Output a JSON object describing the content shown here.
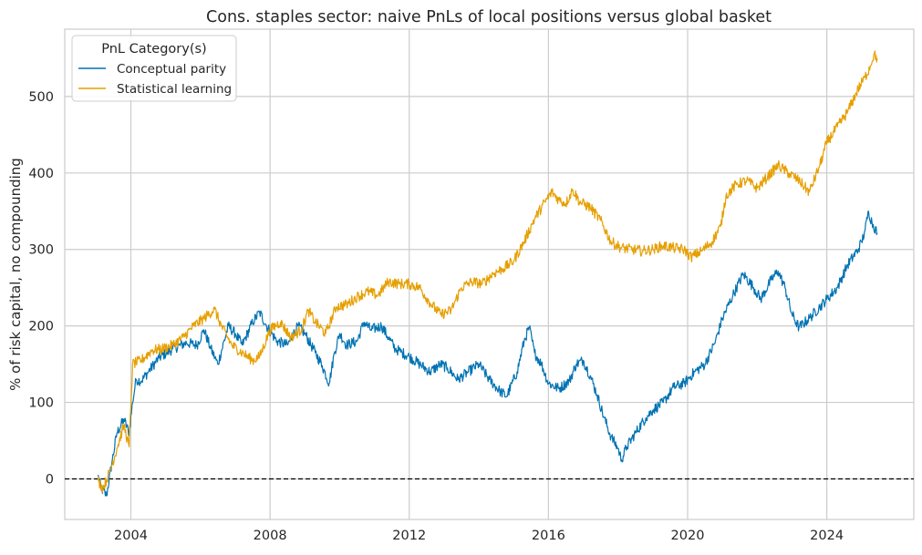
{
  "chart_data": {
    "type": "line",
    "title": "Cons. staples sector: naive PnLs of local positions versus global basket",
    "xlabel": "",
    "ylabel": "% of risk capital, no compounding",
    "xlim": [
      2002.1,
      2026.5
    ],
    "ylim": [
      -53,
      588
    ],
    "xticks": [
      2004,
      2008,
      2012,
      2016,
      2020,
      2024
    ],
    "xtick_labels": [
      "2004",
      "2008",
      "2012",
      "2016",
      "2020",
      "2024"
    ],
    "yticks": [
      0,
      100,
      200,
      300,
      400,
      500
    ],
    "ytick_labels": [
      "0",
      "100",
      "200",
      "300",
      "400",
      "500"
    ],
    "grid": true,
    "hline": {
      "y": 0,
      "style": "dashed",
      "color": "#000000"
    },
    "legend": {
      "title": "PnL Category(s)",
      "placement": "top-left"
    },
    "series": [
      {
        "name": "Conceptual parity",
        "color": "#0072B2",
        "points": [
          [
            2003.05,
            5
          ],
          [
            2003.15,
            -12
          ],
          [
            2003.3,
            -22
          ],
          [
            2003.45,
            20
          ],
          [
            2003.6,
            60
          ],
          [
            2003.8,
            78
          ],
          [
            2003.95,
            60
          ],
          [
            2004.05,
            100
          ],
          [
            2004.15,
            130
          ],
          [
            2004.3,
            128
          ],
          [
            2004.5,
            140
          ],
          [
            2004.8,
            158
          ],
          [
            2005.2,
            170
          ],
          [
            2005.6,
            178
          ],
          [
            2005.9,
            175
          ],
          [
            2006.1,
            195
          ],
          [
            2006.3,
            170
          ],
          [
            2006.5,
            150
          ],
          [
            2006.8,
            200
          ],
          [
            2007.0,
            190
          ],
          [
            2007.2,
            175
          ],
          [
            2007.5,
            205
          ],
          [
            2007.7,
            218
          ],
          [
            2007.9,
            200
          ],
          [
            2008.2,
            180
          ],
          [
            2008.5,
            175
          ],
          [
            2008.8,
            200
          ],
          [
            2009.0,
            190
          ],
          [
            2009.3,
            165
          ],
          [
            2009.5,
            148
          ],
          [
            2009.7,
            125
          ],
          [
            2009.85,
            165
          ],
          [
            2010.0,
            190
          ],
          [
            2010.2,
            175
          ],
          [
            2010.5,
            180
          ],
          [
            2010.7,
            205
          ],
          [
            2010.9,
            195
          ],
          [
            2011.2,
            200
          ],
          [
            2011.4,
            185
          ],
          [
            2011.6,
            170
          ],
          [
            2011.8,
            165
          ],
          [
            2012.0,
            160
          ],
          [
            2012.3,
            150
          ],
          [
            2012.6,
            140
          ],
          [
            2012.9,
            150
          ],
          [
            2013.1,
            145
          ],
          [
            2013.4,
            130
          ],
          [
            2013.7,
            140
          ],
          [
            2014.0,
            150
          ],
          [
            2014.3,
            130
          ],
          [
            2014.6,
            115
          ],
          [
            2014.8,
            108
          ],
          [
            2015.1,
            140
          ],
          [
            2015.3,
            180
          ],
          [
            2015.45,
            198
          ],
          [
            2015.6,
            165
          ],
          [
            2015.8,
            150
          ],
          [
            2016.0,
            125
          ],
          [
            2016.3,
            118
          ],
          [
            2016.6,
            128
          ],
          [
            2016.8,
            150
          ],
          [
            2017.0,
            155
          ],
          [
            2017.2,
            135
          ],
          [
            2017.4,
            110
          ],
          [
            2017.6,
            80
          ],
          [
            2017.8,
            55
          ],
          [
            2018.0,
            40
          ],
          [
            2018.1,
            25
          ],
          [
            2018.25,
            42
          ],
          [
            2018.5,
            60
          ],
          [
            2018.8,
            80
          ],
          [
            2019.0,
            90
          ],
          [
            2019.3,
            100
          ],
          [
            2019.6,
            120
          ],
          [
            2019.9,
            125
          ],
          [
            2020.2,
            140
          ],
          [
            2020.5,
            150
          ],
          [
            2020.8,
            180
          ],
          [
            2021.0,
            210
          ],
          [
            2021.3,
            240
          ],
          [
            2021.6,
            268
          ],
          [
            2021.9,
            250
          ],
          [
            2022.1,
            235
          ],
          [
            2022.4,
            260
          ],
          [
            2022.6,
            272
          ],
          [
            2022.8,
            250
          ],
          [
            2023.0,
            215
          ],
          [
            2023.2,
            198
          ],
          [
            2023.5,
            210
          ],
          [
            2023.8,
            225
          ],
          [
            2024.0,
            235
          ],
          [
            2024.3,
            250
          ],
          [
            2024.6,
            280
          ],
          [
            2024.9,
            300
          ],
          [
            2025.0,
            310
          ],
          [
            2025.1,
            325
          ],
          [
            2025.2,
            350
          ],
          [
            2025.3,
            335
          ],
          [
            2025.45,
            322
          ]
        ]
      },
      {
        "name": "Statistical learning",
        "color": "#E69F00",
        "points": [
          [
            2003.05,
            -2
          ],
          [
            2003.2,
            -12
          ],
          [
            2003.4,
            10
          ],
          [
            2003.6,
            40
          ],
          [
            2003.8,
            70
          ],
          [
            2003.95,
            42
          ],
          [
            2004.05,
            150
          ],
          [
            2004.3,
            155
          ],
          [
            2004.6,
            168
          ],
          [
            2004.9,
            170
          ],
          [
            2005.2,
            175
          ],
          [
            2005.5,
            185
          ],
          [
            2005.8,
            200
          ],
          [
            2006.1,
            210
          ],
          [
            2006.4,
            222
          ],
          [
            2006.6,
            200
          ],
          [
            2006.9,
            175
          ],
          [
            2007.2,
            165
          ],
          [
            2007.5,
            155
          ],
          [
            2007.7,
            160
          ],
          [
            2008.0,
            195
          ],
          [
            2008.3,
            205
          ],
          [
            2008.6,
            185
          ],
          [
            2008.9,
            195
          ],
          [
            2009.1,
            220
          ],
          [
            2009.3,
            205
          ],
          [
            2009.6,
            190
          ],
          [
            2009.9,
            225
          ],
          [
            2010.2,
            228
          ],
          [
            2010.5,
            238
          ],
          [
            2010.8,
            245
          ],
          [
            2011.1,
            240
          ],
          [
            2011.4,
            258
          ],
          [
            2011.7,
            255
          ],
          [
            2012.0,
            255
          ],
          [
            2012.3,
            250
          ],
          [
            2012.6,
            230
          ],
          [
            2012.9,
            215
          ],
          [
            2013.2,
            220
          ],
          [
            2013.5,
            250
          ],
          [
            2013.8,
            258
          ],
          [
            2014.1,
            255
          ],
          [
            2014.4,
            268
          ],
          [
            2014.7,
            275
          ],
          [
            2015.0,
            285
          ],
          [
            2015.3,
            310
          ],
          [
            2015.6,
            340
          ],
          [
            2015.9,
            362
          ],
          [
            2016.1,
            375
          ],
          [
            2016.3,
            365
          ],
          [
            2016.5,
            360
          ],
          [
            2016.7,
            378
          ],
          [
            2016.9,
            362
          ],
          [
            2017.2,
            355
          ],
          [
            2017.5,
            338
          ],
          [
            2017.8,
            310
          ],
          [
            2018.1,
            302
          ],
          [
            2018.4,
            300
          ],
          [
            2018.7,
            298
          ],
          [
            2019.0,
            300
          ],
          [
            2019.3,
            305
          ],
          [
            2019.6,
            302
          ],
          [
            2019.9,
            300
          ],
          [
            2020.1,
            290
          ],
          [
            2020.4,
            298
          ],
          [
            2020.7,
            310
          ],
          [
            2020.95,
            330
          ],
          [
            2021.1,
            370
          ],
          [
            2021.4,
            385
          ],
          [
            2021.7,
            390
          ],
          [
            2022.0,
            380
          ],
          [
            2022.3,
            395
          ],
          [
            2022.6,
            410
          ],
          [
            2022.9,
            400
          ],
          [
            2023.2,
            390
          ],
          [
            2023.5,
            375
          ],
          [
            2023.8,
            410
          ],
          [
            2024.0,
            440
          ],
          [
            2024.3,
            460
          ],
          [
            2024.6,
            480
          ],
          [
            2024.9,
            510
          ],
          [
            2025.1,
            525
          ],
          [
            2025.25,
            540
          ],
          [
            2025.35,
            555
          ],
          [
            2025.45,
            550
          ]
        ]
      }
    ]
  }
}
